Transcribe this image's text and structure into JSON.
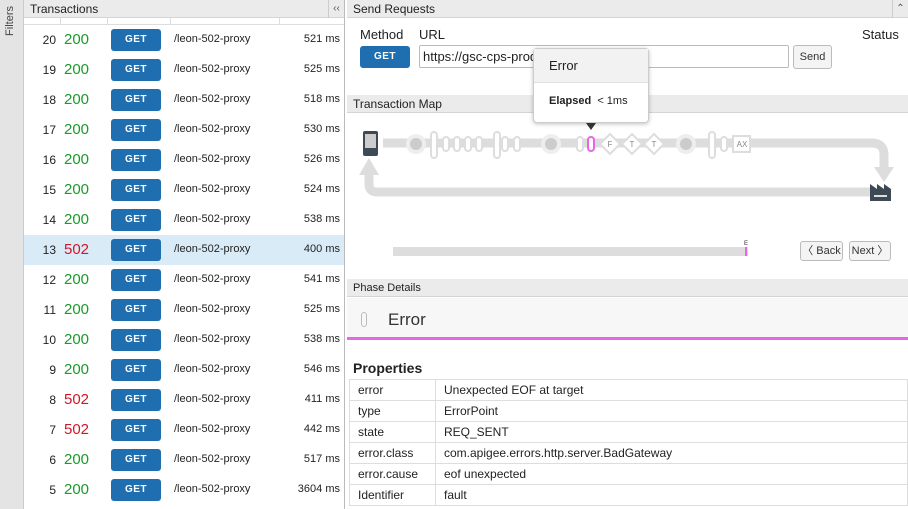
{
  "filters_label": "Filters",
  "transactions": {
    "title": "Transactions",
    "collapse": "‹‹",
    "rows": [
      {
        "n": "20",
        "status": "200",
        "method": "GET",
        "path": "/leon-502-proxy",
        "time": "521 ms"
      },
      {
        "n": "19",
        "status": "200",
        "method": "GET",
        "path": "/leon-502-proxy",
        "time": "525 ms"
      },
      {
        "n": "18",
        "status": "200",
        "method": "GET",
        "path": "/leon-502-proxy",
        "time": "518 ms"
      },
      {
        "n": "17",
        "status": "200",
        "method": "GET",
        "path": "/leon-502-proxy",
        "time": "530 ms"
      },
      {
        "n": "16",
        "status": "200",
        "method": "GET",
        "path": "/leon-502-proxy",
        "time": "526 ms"
      },
      {
        "n": "15",
        "status": "200",
        "method": "GET",
        "path": "/leon-502-proxy",
        "time": "524 ms"
      },
      {
        "n": "14",
        "status": "200",
        "method": "GET",
        "path": "/leon-502-proxy",
        "time": "538 ms"
      },
      {
        "n": "13",
        "status": "502",
        "method": "GET",
        "path": "/leon-502-proxy",
        "time": "400 ms",
        "selected": true
      },
      {
        "n": "12",
        "status": "200",
        "method": "GET",
        "path": "/leon-502-proxy",
        "time": "541 ms"
      },
      {
        "n": "11",
        "status": "200",
        "method": "GET",
        "path": "/leon-502-proxy",
        "time": "525 ms"
      },
      {
        "n": "10",
        "status": "200",
        "method": "GET",
        "path": "/leon-502-proxy",
        "time": "538 ms"
      },
      {
        "n": "9",
        "status": "200",
        "method": "GET",
        "path": "/leon-502-proxy",
        "time": "546 ms"
      },
      {
        "n": "8",
        "status": "502",
        "method": "GET",
        "path": "/leon-502-proxy",
        "time": "411 ms"
      },
      {
        "n": "7",
        "status": "502",
        "method": "GET",
        "path": "/leon-502-proxy",
        "time": "442 ms"
      },
      {
        "n": "6",
        "status": "200",
        "method": "GET",
        "path": "/leon-502-proxy",
        "time": "517 ms"
      },
      {
        "n": "5",
        "status": "200",
        "method": "GET",
        "path": "/leon-502-proxy",
        "time": "3604 ms"
      }
    ]
  },
  "send": {
    "title": "Send Requests",
    "collapse": "⌃",
    "method_label": "Method",
    "url_label": "URL",
    "status_label": "Status",
    "method": "GET",
    "url": "https://gsc-cps-prod-leon-502-proxy",
    "send": "Send"
  },
  "tooltip": {
    "title": "Error",
    "elapsed_label": "Elapsed",
    "elapsed_value": "< 1ms"
  },
  "map": {
    "title": "Transaction Map",
    "nodes": [
      "F",
      "T",
      "T",
      "AX"
    ],
    "timeline_marker": "E",
    "back": "〈 Back",
    "next": "Next 〉",
    "error_color": "#e865e8"
  },
  "phase": {
    "title": "Phase Details",
    "name": "Error",
    "properties_title": "Properties",
    "properties": [
      [
        "error",
        "Unexpected EOF at target"
      ],
      [
        "type",
        "ErrorPoint"
      ],
      [
        "state",
        "REQ_SENT"
      ],
      [
        "error.class",
        "com.apigee.errors.http.server.BadGateway"
      ],
      [
        "error.cause",
        "eof unexpected"
      ],
      [
        "Identifier",
        "fault"
      ]
    ]
  }
}
